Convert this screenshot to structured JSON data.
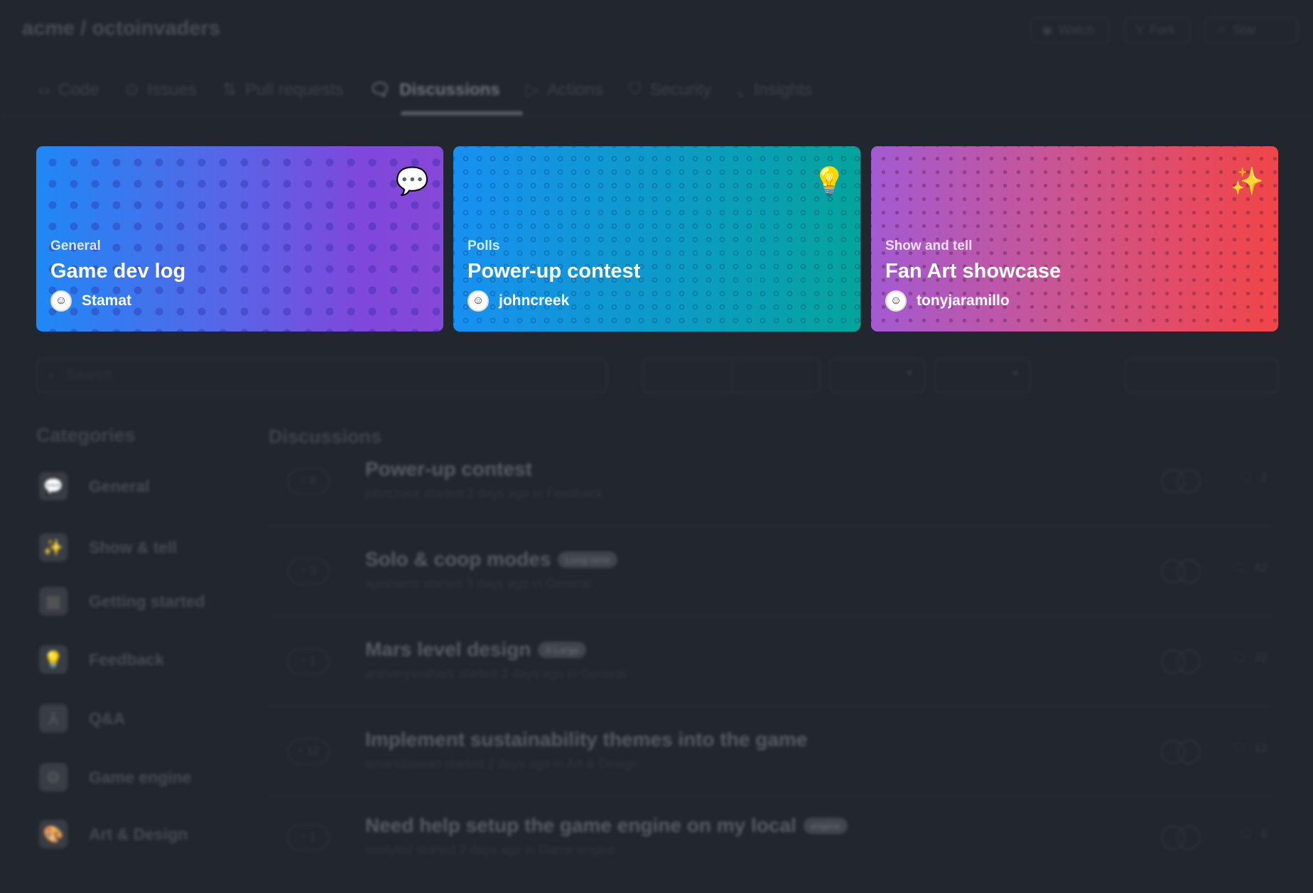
{
  "repo": {
    "owner": "acme",
    "name": "octoinvaders"
  },
  "header_buttons": [
    {
      "label": "Watch",
      "icon": "eye-icon"
    },
    {
      "label": "Fork",
      "icon": "fork-icon"
    },
    {
      "label": "Star",
      "icon": "star-icon"
    }
  ],
  "tabs": [
    {
      "label": "Code",
      "icon": "code-icon"
    },
    {
      "label": "Issues",
      "icon": "issue-icon"
    },
    {
      "label": "Pull requests",
      "icon": "pull-request-icon"
    },
    {
      "label": "Discussions",
      "icon": "discussion-icon",
      "active": true
    },
    {
      "label": "Actions",
      "icon": "play-icon"
    },
    {
      "label": "Security",
      "icon": "shield-icon"
    },
    {
      "label": "Insights",
      "icon": "graph-icon"
    }
  ],
  "featured": [
    {
      "category": "General",
      "title": "Game dev log",
      "user": "Stamat",
      "emoji": "💬"
    },
    {
      "category": "Polls",
      "title": "Power-up contest",
      "user": "johncreek",
      "emoji": "💡"
    },
    {
      "category": "Show and tell",
      "title": "Fan Art showcase",
      "user": "tonyjaramillo",
      "emoji": "✨"
    }
  ],
  "search": {
    "placeholder": "Search"
  },
  "categories": {
    "heading": "Categories",
    "items": [
      {
        "label": "General",
        "icon": "💬"
      },
      {
        "label": "Show & tell",
        "icon": "✨"
      },
      {
        "label": "Getting started",
        "icon": "▦"
      },
      {
        "label": "Feedback",
        "icon": "💡"
      },
      {
        "label": "Q&A",
        "icon": "⅄"
      },
      {
        "label": "Game engine",
        "icon": "⚙"
      },
      {
        "label": "Art & Design",
        "icon": "🎨"
      }
    ]
  },
  "discussions": {
    "heading": "Discussions",
    "rows": [
      {
        "votes": "9",
        "title": "Power-up contest",
        "badge": "",
        "meta": "johncreek started 2 days ago in Feedback",
        "comments": "2"
      },
      {
        "votes": "3",
        "title": "Solo & coop modes",
        "badge": "Long term",
        "meta": "ajashams started 3 days ago in General",
        "comments": "42"
      },
      {
        "votes": "1",
        "title": "Mars level design",
        "badge": "X Large",
        "meta": "anthonyvsshark started 2 days ago in General",
        "comments": "32"
      },
      {
        "votes": "12",
        "title": "Implement sustainability themes into the game",
        "badge": "",
        "meta": "amandaswan started 2 days ago in Art & Design",
        "comments": "12"
      },
      {
        "votes": "1",
        "title": "Need help setup the game engine on my local",
        "badge": "engine",
        "meta": "enstyled started 2 days ago in Game engine",
        "comments": "6"
      }
    ]
  }
}
